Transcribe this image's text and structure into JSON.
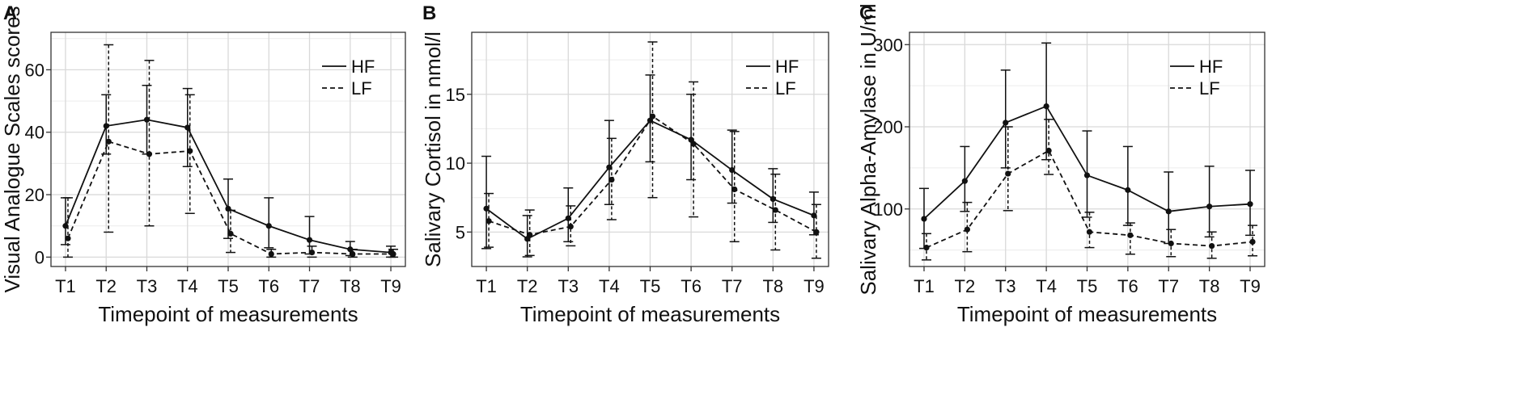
{
  "chart_data": [
    {
      "type": "line",
      "panel": "A",
      "xlabel": "Timepoint of measurements",
      "ylabel": "Visual Analogue Scales scores",
      "categories": [
        "T1",
        "T2",
        "T3",
        "T4",
        "T5",
        "T6",
        "T7",
        "T8",
        "T9"
      ],
      "ylim": [
        -3,
        72
      ],
      "yticks": [
        0,
        20,
        40,
        60
      ],
      "grid": true,
      "legend_position": "top-right",
      "series": [
        {
          "name": "HF",
          "style": "solid",
          "values": [
            10,
            42,
            44,
            41.5,
            15.5,
            10,
            5.5,
            2.5,
            1.5
          ],
          "lower": [
            4,
            33,
            33,
            29,
            6,
            3,
            1,
            0.5,
            0
          ],
          "upper": [
            19,
            52,
            55,
            54,
            25,
            19,
            13,
            5,
            3.5
          ]
        },
        {
          "name": "LF",
          "style": "dashed",
          "values": [
            6,
            37,
            33,
            34,
            7.5,
            1,
            1.5,
            1,
            1
          ],
          "lower": [
            0,
            8,
            10,
            14,
            1.5,
            0,
            0,
            0,
            0
          ],
          "upper": [
            19,
            68,
            63,
            52,
            15,
            2.5,
            3.5,
            2.5,
            2.5
          ]
        }
      ]
    },
    {
      "type": "line",
      "panel": "B",
      "xlabel": "Timepoint of measurements",
      "ylabel": "Salivary Cortisol in nmol/l",
      "categories": [
        "T1",
        "T2",
        "T3",
        "T4",
        "T5",
        "T6",
        "T7",
        "T8",
        "T9"
      ],
      "ylim": [
        2.5,
        19.5
      ],
      "yticks": [
        5,
        10,
        15
      ],
      "grid": true,
      "legend_position": "top-right",
      "series": [
        {
          "name": "HF",
          "style": "solid",
          "values": [
            6.7,
            4.5,
            6.0,
            9.7,
            13.1,
            11.7,
            9.5,
            7.4,
            6.2
          ],
          "lower": [
            3.8,
            3.2,
            4.3,
            7.0,
            10.1,
            8.8,
            7.1,
            5.7,
            4.8
          ],
          "upper": [
            10.5,
            6.2,
            8.2,
            13.1,
            16.4,
            15.0,
            12.4,
            9.6,
            7.9
          ]
        },
        {
          "name": "LF",
          "style": "dashed",
          "values": [
            5.8,
            4.8,
            5.4,
            8.8,
            13.4,
            11.4,
            8.1,
            6.6,
            5.0
          ],
          "lower": [
            3.9,
            3.3,
            4.0,
            5.9,
            7.5,
            6.1,
            4.3,
            3.7,
            3.1
          ],
          "upper": [
            7.8,
            6.6,
            6.9,
            11.8,
            18.8,
            15.9,
            12.3,
            9.2,
            7.0
          ]
        }
      ]
    },
    {
      "type": "line",
      "panel": "C",
      "xlabel": "Timepoint of measurements",
      "ylabel": "Salivary Alpha-Amylase in U/ml",
      "categories": [
        "T1",
        "T2",
        "T3",
        "T4",
        "T5",
        "T6",
        "T7",
        "T8",
        "T9"
      ],
      "ylim": [
        30,
        315
      ],
      "yticks": [
        100,
        200,
        300
      ],
      "grid": true,
      "legend_position": "top-right",
      "series": [
        {
          "name": "HF",
          "style": "solid",
          "values": [
            88,
            134,
            205,
            225,
            141,
            123,
            97,
            103,
            106
          ],
          "lower": [
            52,
            97,
            150,
            160,
            90,
            80,
            58,
            66,
            68
          ],
          "upper": [
            125,
            176,
            269,
            302,
            195,
            176,
            145,
            152,
            147
          ]
        },
        {
          "name": "LF",
          "style": "dashed",
          "values": [
            53,
            75,
            143,
            171,
            72,
            68,
            58,
            55,
            60
          ],
          "lower": [
            38,
            48,
            98,
            142,
            53,
            45,
            42,
            40,
            43
          ],
          "upper": [
            70,
            108,
            200,
            209,
            96,
            83,
            75,
            72,
            80
          ]
        }
      ]
    }
  ]
}
